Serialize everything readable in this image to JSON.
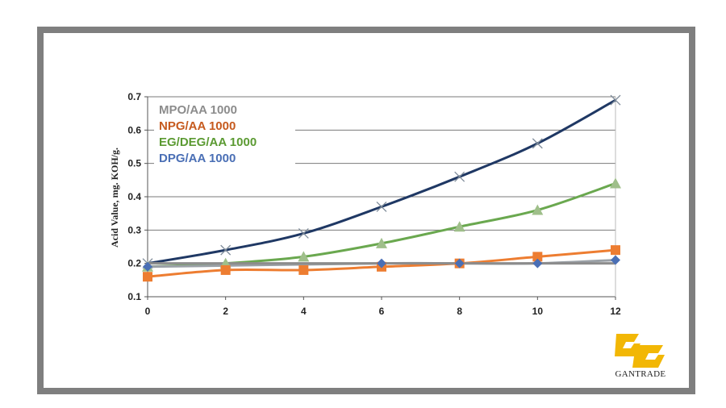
{
  "colors": {
    "MPO/AA": "#8c8c8c",
    "NPG/AA": "#ed7d31",
    "EG/DEG/AA": "#6aa84f",
    "DPG/AA": "#4a6fb5",
    "curve_top": "#1f3864",
    "frame": "#7f7f7f"
  },
  "logo": {
    "icon": "gantrade-gc-logo-icon",
    "text": "GANTRADE"
  },
  "chart_data": {
    "type": "line",
    "ylabel": "Acid Value, mg. KOH/g.",
    "xlabel": "",
    "xlim": [
      0,
      12
    ],
    "ylim": [
      0.1,
      0.7
    ],
    "xticks": [
      0,
      2,
      4,
      6,
      8,
      10,
      12
    ],
    "yticks": [
      0.1,
      0.2,
      0.3,
      0.4,
      0.5,
      0.6,
      0.7
    ],
    "grid": "horizontal",
    "legend_position": "top-left",
    "legend": [
      {
        "label": "MPO/AA",
        "value": "1000",
        "color": "#8c8c8c"
      },
      {
        "label": "NPG/AA",
        "value": "1000",
        "color": "#c65a1e"
      },
      {
        "label": "EG/DEG/AA",
        "value": "1000",
        "color": "#5b9a32"
      },
      {
        "label": "DPG/AA",
        "value": "1000",
        "color": "#4a6fb5"
      }
    ],
    "series": [
      {
        "marker": "x",
        "color": "#1f3864",
        "x": [
          0,
          2,
          4,
          6,
          8,
          10,
          12
        ],
        "y": [
          0.2,
          0.24,
          0.29,
          0.37,
          0.46,
          0.56,
          0.69
        ]
      },
      {
        "marker": "triangle",
        "color": "#6aa84f",
        "marker_color": "#9fbf8a",
        "x": [
          0,
          2,
          4,
          6,
          8,
          10,
          12
        ],
        "y": [
          0.19,
          0.2,
          0.22,
          0.26,
          0.31,
          0.36,
          0.44
        ]
      },
      {
        "marker": "square",
        "color": "#ed7d31",
        "x": [
          0,
          2,
          4,
          6,
          8,
          10,
          12
        ],
        "y": [
          0.16,
          0.18,
          0.18,
          0.19,
          0.2,
          0.22,
          0.24
        ]
      },
      {
        "marker": "diamond",
        "color": "#4a6fb5",
        "line_color": "#9aa0a6",
        "x": [
          0,
          6,
          8,
          10,
          12
        ],
        "y": [
          0.19,
          0.2,
          0.2,
          0.2,
          0.21
        ]
      },
      {
        "marker": "none",
        "color": "#8c8c8c",
        "x": [
          0,
          12
        ],
        "y": [
          0.2,
          0.2
        ]
      }
    ]
  }
}
